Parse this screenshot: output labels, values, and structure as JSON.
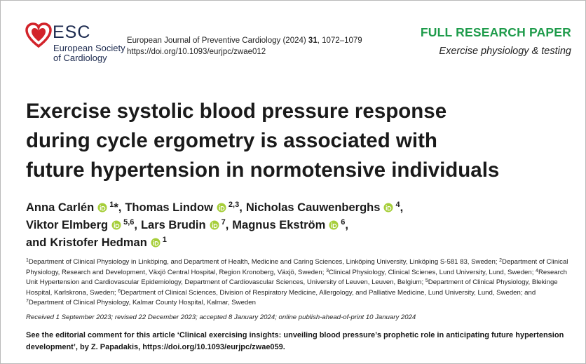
{
  "logo": {
    "abbr": "ESC",
    "name_line1": "European Society",
    "name_line2": "of Cardiology"
  },
  "journal": {
    "name": "European Journal of Preventive Cardiology (2024)",
    "volume": "31",
    "pages": "1072–1079",
    "doi": "https://doi.org/10.1093/eurjpc/zwae012"
  },
  "article_type": "FULL RESEARCH PAPER",
  "section": "Exercise physiology & testing",
  "title_lines": [
    "Exercise systolic blood pressure response",
    "during cycle ergometry is associated with",
    "future hypertension in normotensive individuals"
  ],
  "author_lines": [
    [
      {
        "name": "Anna Carlén",
        "sup": "1",
        "mark": "*",
        "suffix": ","
      },
      {
        "name": "Thomas Lindow",
        "sup": "2,3",
        "suffix": ","
      },
      {
        "name": "Nicholas Cauwenberghs",
        "sup": "4",
        "suffix": ","
      }
    ],
    [
      {
        "name": "Viktor Elmberg",
        "sup": "5,6",
        "suffix": ","
      },
      {
        "name": "Lars Brudin",
        "sup": "7",
        "suffix": ","
      },
      {
        "name": "Magnus Ekström",
        "sup": "6",
        "suffix": ","
      }
    ],
    [
      {
        "prefix": "and",
        "name": "Kristofer Hedman",
        "sup": "1"
      }
    ]
  ],
  "affiliations": [
    {
      "num": "1",
      "text": "Department of Clinical Physiology in Linköping, and Department of Health, Medicine and Caring Sciences, Linköping University, Linköping S-581 83, Sweden;"
    },
    {
      "num": "2",
      "text": "Department of Clinical Physiology, Research and Development, Växjö Central Hospital, Region Kronoberg, Växjö, Sweden;"
    },
    {
      "num": "3",
      "text": "Clinical Physiology, Clinical Scienes, Lund University, Lund, Sweden;"
    },
    {
      "num": "4",
      "text": "Research Unit Hypertension and Cardiovascular Epidemiology, Department of Cardiovascular Sciences, University of Leuven, Leuven, Belgium;"
    },
    {
      "num": "5",
      "text": "Department of Clinical Physiology, Blekinge Hospital, Karlskrona, Sweden;"
    },
    {
      "num": "6",
      "text": "Department of Clinical Sciences, Division of Respiratory Medicine, Allergology, and Palliative Medicine, Lund University, Lund, Sweden; and"
    },
    {
      "num": "7",
      "text": "Department of Clinical Physiology, Kalmar County Hospital, Kalmar, Sweden"
    }
  ],
  "dates": "Received 1 September 2023; revised 22 December 2023; accepted 8 January 2024; online publish-ahead-of-print 10 January 2024",
  "editorial_note": "See the editorial comment for this article ‘Clinical exercising insights: unveiling blood pressure’s prophetic role in anticipating future hypertension development’, by Z. Papadakis, https://doi.org/10.1093/eurjpc/zwae059."
}
